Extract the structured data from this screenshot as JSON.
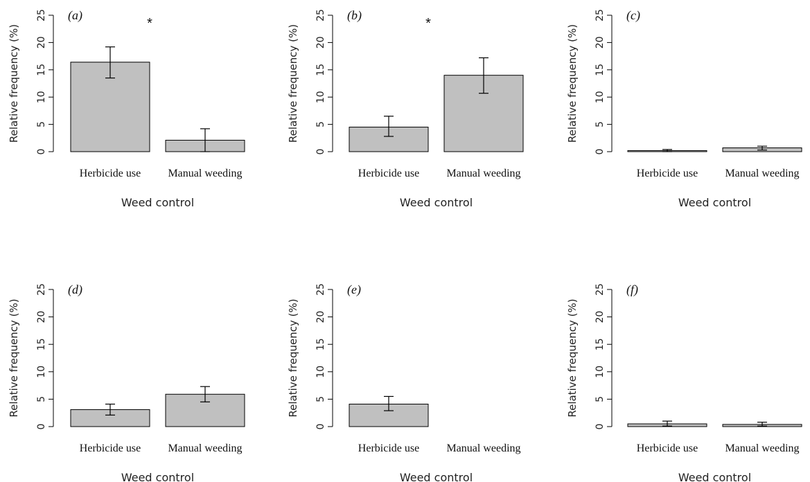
{
  "chart_data": [
    {
      "type": "bar",
      "panel_label": "(a)",
      "categories": [
        "Herbicide use",
        "Manual weeding"
      ],
      "values": [
        16.4,
        2.1
      ],
      "error_low": [
        13.5,
        0.0
      ],
      "error_high": [
        19.2,
        4.2
      ],
      "significance": "*",
      "xlabel": "Weed control",
      "ylabel": "Relative frequency (%)",
      "ylim": [
        0,
        25
      ],
      "yticks": [
        "0",
        "5",
        "10",
        "15",
        "20",
        "25"
      ],
      "grid": false,
      "bar_color": "#c0c0c0"
    },
    {
      "type": "bar",
      "panel_label": "(b)",
      "categories": [
        "Herbicide use",
        "Manual weeding"
      ],
      "values": [
        4.5,
        14.0
      ],
      "error_low": [
        2.8,
        10.7
      ],
      "error_high": [
        6.5,
        17.2
      ],
      "significance": "*",
      "xlabel": "Weed control",
      "ylabel": "Relative frequency (%)",
      "ylim": [
        0,
        25
      ],
      "yticks": [
        "0",
        "5",
        "10",
        "15",
        "20",
        "25"
      ],
      "grid": false,
      "bar_color": "#c0c0c0"
    },
    {
      "type": "bar",
      "panel_label": "(c)",
      "categories": [
        "Herbicide use",
        "Manual weeding"
      ],
      "values": [
        0.2,
        0.7
      ],
      "error_low": [
        0.0,
        0.3
      ],
      "error_high": [
        0.4,
        1.0
      ],
      "significance": "",
      "xlabel": "Weed control",
      "ylabel": "Relative frequency (%)",
      "ylim": [
        0,
        25
      ],
      "yticks": [
        "0",
        "5",
        "10",
        "15",
        "20",
        "25"
      ],
      "grid": false,
      "bar_color": "#c0c0c0"
    },
    {
      "type": "bar",
      "panel_label": "(d)",
      "categories": [
        "Herbicide use",
        "Manual weeding"
      ],
      "values": [
        3.1,
        5.9
      ],
      "error_low": [
        2.1,
        4.5
      ],
      "error_high": [
        4.1,
        7.3
      ],
      "significance": "",
      "xlabel": "Weed control",
      "ylabel": "Relative frequency (%)",
      "ylim": [
        0,
        25
      ],
      "yticks": [
        "0",
        "5",
        "10",
        "15",
        "20",
        "25"
      ],
      "grid": false,
      "bar_color": "#c0c0c0"
    },
    {
      "type": "bar",
      "panel_label": "(e)",
      "categories": [
        "Herbicide use",
        "Manual weeding"
      ],
      "values": [
        4.1,
        0.0
      ],
      "error_low": [
        2.9,
        0.0
      ],
      "error_high": [
        5.5,
        0.0
      ],
      "significance": "",
      "xlabel": "Weed control",
      "ylabel": "Relative frequency (%)",
      "ylim": [
        0,
        25
      ],
      "yticks": [
        "0",
        "5",
        "10",
        "15",
        "20",
        "25"
      ],
      "grid": false,
      "bar_color": "#c0c0c0"
    },
    {
      "type": "bar",
      "panel_label": "(f)",
      "categories": [
        "Herbicide use",
        "Manual weeding"
      ],
      "values": [
        0.5,
        0.4
      ],
      "error_low": [
        0.1,
        0.1
      ],
      "error_high": [
        1.0,
        0.8
      ],
      "significance": "",
      "xlabel": "Weed control",
      "ylabel": "Relative frequency (%)",
      "ylim": [
        0,
        25
      ],
      "yticks": [
        "0",
        "5",
        "10",
        "15",
        "20",
        "25"
      ],
      "grid": false,
      "bar_color": "#c0c0c0"
    }
  ]
}
